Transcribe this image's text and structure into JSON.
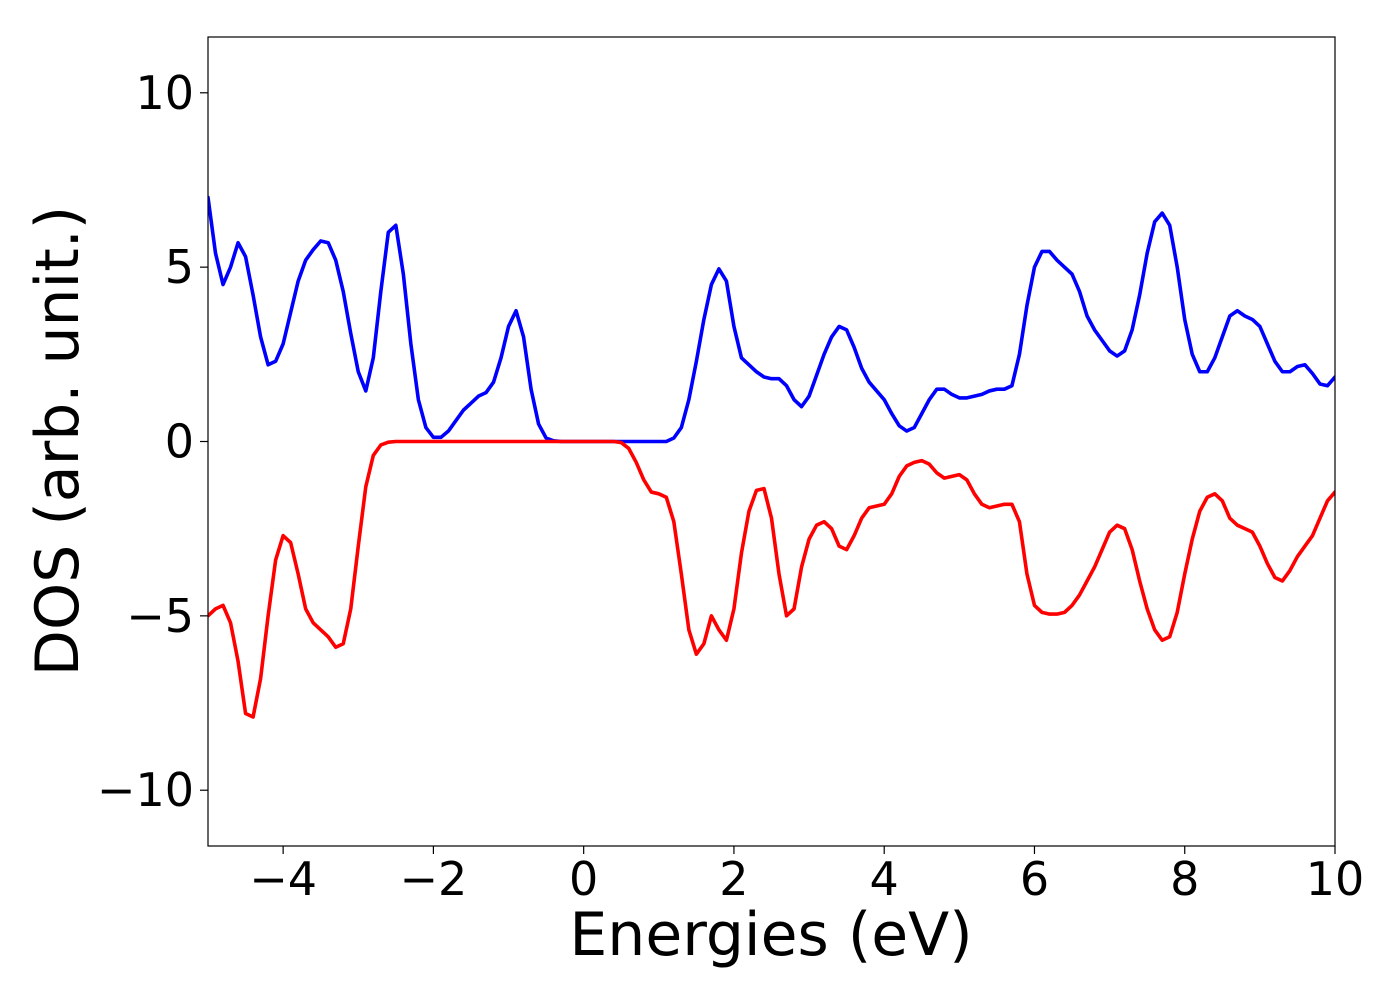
{
  "chart_data": {
    "type": "line",
    "xlabel": "Energies (eV)",
    "ylabel": "DOS (arb. unit.)",
    "xlim": [
      -5,
      10
    ],
    "ylim": [
      -11.6,
      11.6
    ],
    "xticks": [
      {
        "value": -4,
        "label": "−4"
      },
      {
        "value": -2,
        "label": "−2"
      },
      0,
      2,
      4,
      6,
      8,
      10
    ],
    "yticks": [
      {
        "value": -10,
        "label": "−10"
      },
      {
        "value": -5,
        "label": "−5"
      },
      0,
      5,
      10
    ],
    "grid": false,
    "x": [
      -5.0,
      -4.9,
      -4.8,
      -4.7,
      -4.6,
      -4.5,
      -4.4,
      -4.3,
      -4.2,
      -4.1,
      -4.0,
      -3.9,
      -3.8,
      -3.7,
      -3.6,
      -3.5,
      -3.4,
      -3.3,
      -3.2,
      -3.1,
      -3.0,
      -2.9,
      -2.8,
      -2.7,
      -2.6,
      -2.5,
      -2.4,
      -2.3,
      -2.2,
      -2.1,
      -2.0,
      -1.9,
      -1.8,
      -1.7,
      -1.6,
      -1.5,
      -1.4,
      -1.3,
      -1.2,
      -1.1,
      -1.0,
      -0.9,
      -0.8,
      -0.7,
      -0.6,
      -0.5,
      -0.4,
      -0.3,
      -0.2,
      -0.1,
      0.0,
      0.1,
      0.2,
      0.3,
      0.4,
      0.5,
      0.6,
      0.7,
      0.8,
      0.9,
      1.0,
      1.1,
      1.2,
      1.3,
      1.4,
      1.5,
      1.6,
      1.7,
      1.8,
      1.9,
      2.0,
      2.1,
      2.2,
      2.3,
      2.4,
      2.5,
      2.6,
      2.7,
      2.8,
      2.9,
      3.0,
      3.1,
      3.2,
      3.3,
      3.4,
      3.5,
      3.6,
      3.7,
      3.8,
      3.9,
      4.0,
      4.1,
      4.2,
      4.3,
      4.4,
      4.5,
      4.6,
      4.7,
      4.8,
      4.9,
      5.0,
      5.1,
      5.2,
      5.3,
      5.4,
      5.5,
      5.6,
      5.7,
      5.8,
      5.9,
      6.0,
      6.1,
      6.2,
      6.3,
      6.4,
      6.5,
      6.6,
      6.7,
      6.8,
      6.9,
      7.0,
      7.1,
      7.2,
      7.3,
      7.4,
      7.5,
      7.6,
      7.7,
      7.8,
      7.9,
      8.0,
      8.1,
      8.2,
      8.3,
      8.4,
      8.5,
      8.6,
      8.7,
      8.8,
      8.9,
      9.0,
      9.1,
      9.2,
      9.3,
      9.4,
      9.5,
      9.6,
      9.7,
      9.8,
      9.9,
      10.0
    ],
    "series": [
      {
        "color": "#0000ff",
        "values": [
          7.0,
          5.4,
          4.5,
          5.0,
          5.7,
          5.3,
          4.2,
          3.0,
          2.2,
          2.3,
          2.8,
          3.7,
          4.6,
          5.2,
          5.5,
          5.75,
          5.7,
          5.2,
          4.3,
          3.1,
          2.0,
          1.45,
          2.4,
          4.3,
          6.0,
          6.2,
          4.8,
          2.8,
          1.2,
          0.4,
          0.12,
          0.12,
          0.3,
          0.6,
          0.9,
          1.1,
          1.3,
          1.4,
          1.7,
          2.4,
          3.3,
          3.75,
          3.0,
          1.5,
          0.5,
          0.1,
          0.02,
          0,
          0,
          0,
          0,
          0,
          0,
          0,
          0,
          0,
          0,
          0,
          0,
          0,
          0,
          0,
          0.1,
          0.4,
          1.2,
          2.3,
          3.5,
          4.5,
          4.95,
          4.6,
          3.3,
          2.4,
          2.2,
          2.0,
          1.85,
          1.8,
          1.8,
          1.6,
          1.2,
          1.0,
          1.3,
          1.9,
          2.5,
          3.0,
          3.3,
          3.2,
          2.7,
          2.1,
          1.7,
          1.45,
          1.2,
          0.8,
          0.45,
          0.3,
          0.4,
          0.8,
          1.2,
          1.5,
          1.5,
          1.35,
          1.25,
          1.25,
          1.3,
          1.35,
          1.45,
          1.5,
          1.5,
          1.6,
          2.5,
          3.9,
          5.0,
          5.45,
          5.45,
          5.2,
          5.0,
          4.8,
          4.3,
          3.6,
          3.2,
          2.9,
          2.6,
          2.45,
          2.6,
          3.2,
          4.2,
          5.4,
          6.3,
          6.55,
          6.2,
          5.0,
          3.5,
          2.5,
          2.0,
          2.0,
          2.4,
          3.0,
          3.6,
          3.75,
          3.6,
          3.5,
          3.3,
          2.8,
          2.3,
          2.0,
          2.0,
          2.15,
          2.2,
          1.95,
          1.65,
          1.6,
          1.85
        ]
      },
      {
        "color": "#ff0000",
        "values": [
          -5.0,
          -4.8,
          -4.7,
          -5.2,
          -6.3,
          -7.8,
          -7.9,
          -6.8,
          -5.0,
          -3.4,
          -2.7,
          -2.9,
          -3.8,
          -4.8,
          -5.2,
          -5.4,
          -5.6,
          -5.9,
          -5.8,
          -4.8,
          -3.0,
          -1.3,
          -0.4,
          -0.1,
          -0.02,
          0,
          0,
          0,
          0,
          0,
          0,
          0,
          0,
          0,
          0,
          0,
          0,
          0,
          0,
          0,
          0,
          0,
          0,
          0,
          0,
          0,
          0,
          0,
          0,
          0,
          0,
          0,
          0,
          0,
          0,
          -0.03,
          -0.2,
          -0.6,
          -1.1,
          -1.45,
          -1.5,
          -1.6,
          -2.3,
          -3.8,
          -5.4,
          -6.1,
          -5.8,
          -5.0,
          -5.4,
          -5.7,
          -4.8,
          -3.2,
          -2.0,
          -1.4,
          -1.35,
          -2.2,
          -3.8,
          -5.0,
          -4.8,
          -3.6,
          -2.8,
          -2.4,
          -2.3,
          -2.5,
          -3.0,
          -3.1,
          -2.7,
          -2.2,
          -1.9,
          -1.85,
          -1.8,
          -1.5,
          -1.0,
          -0.7,
          -0.6,
          -0.55,
          -0.65,
          -0.9,
          -1.05,
          -1.0,
          -0.95,
          -1.1,
          -1.5,
          -1.8,
          -1.9,
          -1.85,
          -1.8,
          -1.8,
          -2.3,
          -3.8,
          -4.7,
          -4.9,
          -4.95,
          -4.95,
          -4.9,
          -4.7,
          -4.4,
          -4.0,
          -3.6,
          -3.1,
          -2.6,
          -2.4,
          -2.5,
          -3.1,
          -4.0,
          -4.8,
          -5.4,
          -5.7,
          -5.6,
          -4.9,
          -3.8,
          -2.8,
          -2.0,
          -1.6,
          -1.5,
          -1.7,
          -2.2,
          -2.4,
          -2.5,
          -2.6,
          -3.0,
          -3.5,
          -3.9,
          -4.0,
          -3.7,
          -3.3,
          -3.0,
          -2.7,
          -2.2,
          -1.7,
          -1.45
        ]
      }
    ]
  }
}
